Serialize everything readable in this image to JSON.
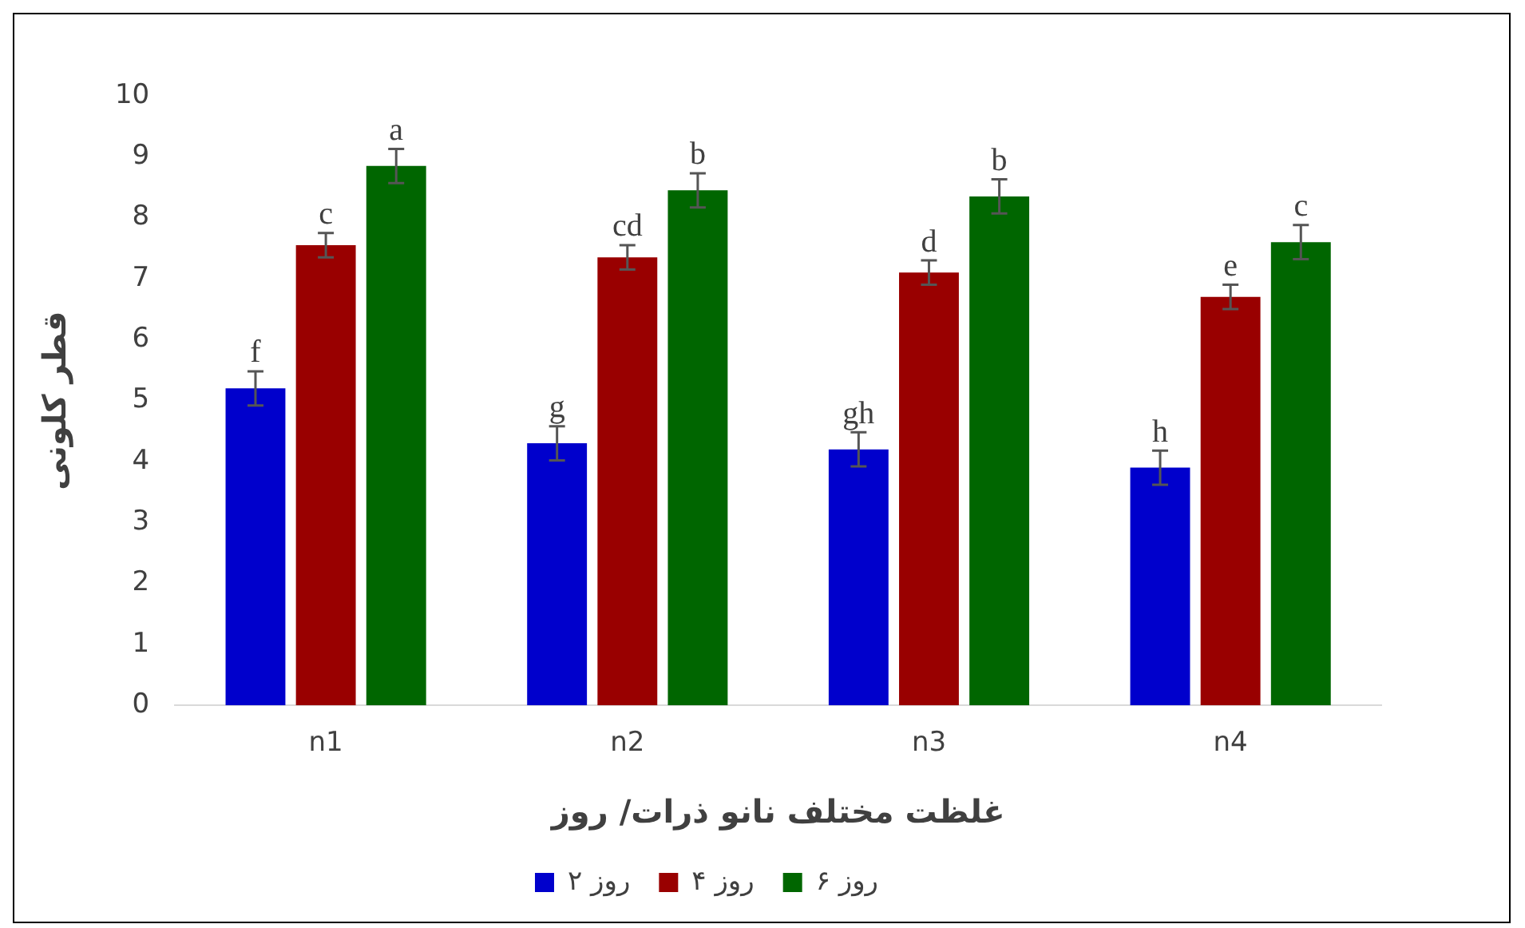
{
  "chart_data": {
    "type": "bar",
    "xlabel": "غلظت مختلف نانو ذرات/ روز",
    "ylabel": "قطر کلونی",
    "categories": [
      "n1",
      "n2",
      "n3",
      "n4"
    ],
    "series": [
      {
        "name": "۲ روز",
        "color": "#0000cc",
        "values": [
          5.2,
          4.3,
          4.2,
          3.9
        ],
        "errors": [
          0.28,
          0.28,
          0.28,
          0.28
        ],
        "value_labels": [
          "f",
          "g",
          "gh",
          "h"
        ]
      },
      {
        "name": "۴ روز",
        "color": "#990000",
        "values": [
          7.55,
          7.35,
          7.1,
          6.7
        ],
        "errors": [
          0.2,
          0.2,
          0.2,
          0.2
        ],
        "value_labels": [
          "c",
          "cd",
          "d",
          "e"
        ]
      },
      {
        "name": "۶ روز",
        "color": "#006600",
        "values": [
          8.85,
          8.45,
          8.35,
          7.6
        ],
        "errors": [
          0.28,
          0.28,
          0.28,
          0.28
        ],
        "value_labels": [
          "a",
          "b",
          "b",
          "c"
        ]
      }
    ],
    "ylim": [
      0,
      10
    ],
    "yticks": [
      0,
      1,
      2,
      3,
      4,
      5,
      6,
      7,
      8,
      9,
      10
    ],
    "grid": false,
    "legend": "bottom"
  }
}
